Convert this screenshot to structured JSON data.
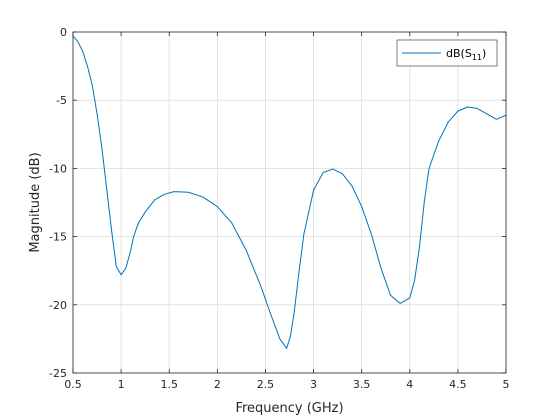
{
  "chart_data": {
    "type": "line",
    "title": "",
    "xlabel": "Frequency (GHz)",
    "ylabel": "Magnitude (dB)",
    "xlim": [
      0.5,
      5
    ],
    "ylim": [
      -25,
      0
    ],
    "xticks": [
      0.5,
      1,
      1.5,
      2,
      2.5,
      3,
      3.5,
      4,
      4.5,
      5
    ],
    "xtick_labels": [
      "0.5",
      "1",
      "1.5",
      "2",
      "2.5",
      "3",
      "3.5",
      "4",
      "4.5",
      "5"
    ],
    "yticks": [
      0,
      -5,
      -10,
      -15,
      -20,
      -25
    ],
    "ytick_labels": [
      "0",
      "-5",
      "-10",
      "-15",
      "-20",
      "-25"
    ],
    "grid": true,
    "legend_position": "top-right",
    "series": [
      {
        "name": "dB(S11)",
        "legend_base": "dB(S",
        "legend_sub": "11",
        "legend_close": ")",
        "color": "#0072bd",
        "x": [
          0.5,
          0.55,
          0.6,
          0.65,
          0.7,
          0.75,
          0.8,
          0.85,
          0.9,
          0.95,
          1.0,
          1.05,
          1.1,
          1.13,
          1.18,
          1.25,
          1.35,
          1.45,
          1.55,
          1.7,
          1.85,
          2.0,
          2.15,
          2.3,
          2.45,
          2.55,
          2.65,
          2.72,
          2.76,
          2.8,
          2.85,
          2.9,
          3.0,
          3.1,
          3.2,
          3.3,
          3.4,
          3.5,
          3.6,
          3.7,
          3.8,
          3.9,
          4.0,
          4.05,
          4.1,
          4.15,
          4.2,
          4.3,
          4.4,
          4.5,
          4.6,
          4.7,
          4.8,
          4.9,
          5.0
        ],
        "y": [
          -0.3,
          -0.7,
          -1.4,
          -2.5,
          -3.9,
          -6.0,
          -8.5,
          -11.5,
          -14.5,
          -17.2,
          -17.8,
          -17.3,
          -16.0,
          -15.0,
          -14.0,
          -13.2,
          -12.3,
          -11.9,
          -11.7,
          -11.75,
          -12.1,
          -12.8,
          -14.0,
          -16.0,
          -18.6,
          -20.6,
          -22.5,
          -23.2,
          -22.3,
          -20.5,
          -17.5,
          -14.8,
          -11.6,
          -10.3,
          -10.05,
          -10.4,
          -11.3,
          -12.8,
          -14.8,
          -17.3,
          -19.3,
          -19.9,
          -19.5,
          -18.2,
          -15.8,
          -12.5,
          -10.0,
          -8.0,
          -6.6,
          -5.8,
          -5.5,
          -5.6,
          -6.0,
          -6.4,
          -6.1
        ]
      }
    ]
  }
}
